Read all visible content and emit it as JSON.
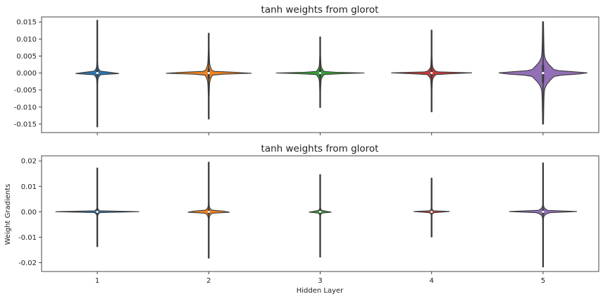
{
  "chart_data": [
    {
      "type": "violin",
      "title": "tanh weights from glorot",
      "xlabel": "",
      "ylabel": "",
      "categories": [
        "1",
        "2",
        "3",
        "4",
        "5"
      ],
      "ylim": [
        -0.0175,
        0.0165
      ],
      "yticks": [
        0.015,
        0.01,
        0.005,
        0.0,
        -0.005,
        -0.01,
        -0.015
      ],
      "yticklabels": [
        "0.015",
        "0.010",
        "0.005",
        "0.000",
        "-0.005",
        "-0.010",
        "-0.015"
      ],
      "show_xticklabels": false,
      "violins": [
        {
          "category": "1",
          "color": "#2e75ad",
          "min": -0.0158,
          "max": 0.0155,
          "q1": -0.0008,
          "median": 0.0,
          "q3": 0.0009,
          "iqr_width": 0.075,
          "tail_width": 0.025
        },
        {
          "category": "2",
          "color": "#ee8421",
          "min": -0.0135,
          "max": 0.0117,
          "q1": -0.0016,
          "median": 0.0,
          "q3": 0.0013,
          "iqr_width": 0.06,
          "tail_width": 0.03
        },
        {
          "category": "3",
          "color": "#389d39",
          "min": -0.0101,
          "max": 0.0106,
          "q1": -0.0012,
          "median": 0.0,
          "q3": 0.0012,
          "iqr_width": 0.065,
          "tail_width": 0.03
        },
        {
          "category": "4",
          "color": "#c63b3b",
          "min": -0.0114,
          "max": 0.0126,
          "q1": -0.001,
          "median": 0.0,
          "q3": 0.0011,
          "iqr_width": 0.08,
          "tail_width": 0.03
        },
        {
          "category": "5",
          "color": "#926fb6",
          "min": -0.015,
          "max": 0.0151,
          "q1": -0.0028,
          "median": 0.0,
          "q3": 0.0024,
          "iqr_width": 0.23,
          "tail_width": 0.04
        }
      ]
    },
    {
      "type": "violin",
      "title": "tanh weights from glorot",
      "xlabel": "Hidden Layer",
      "ylabel": "Weight Gradients",
      "categories": [
        "1",
        "2",
        "3",
        "4",
        "5"
      ],
      "ylim": [
        -0.0235,
        0.022
      ],
      "yticks": [
        0.02,
        0.01,
        0.0,
        -0.01,
        -0.02
      ],
      "yticklabels": [
        "0.02",
        "0.01",
        "0.00",
        "-0.01",
        "-0.02"
      ],
      "show_xticklabels": true,
      "violins": [
        {
          "category": "1",
          "color": "#2e75ad",
          "min": -0.0137,
          "max": 0.0172,
          "q1": -0.0006,
          "median": 0.0,
          "q3": 0.0007,
          "iqr_width": 0.055,
          "tail_width": 0.018
        },
        {
          "category": "2",
          "color": "#ee8421",
          "min": -0.0182,
          "max": 0.0195,
          "q1": -0.0009,
          "median": 0.0,
          "q3": 0.0011,
          "iqr_width": 0.075,
          "tail_width": 0.02
        },
        {
          "category": "3",
          "color": "#389d39",
          "min": -0.0178,
          "max": 0.0146,
          "q1": -0.0006,
          "median": 0.0,
          "q3": 0.0007,
          "iqr_width": 0.045,
          "tail_width": 0.016
        },
        {
          "category": "4",
          "color": "#c63b3b",
          "min": -0.0099,
          "max": 0.0132,
          "q1": -0.0005,
          "median": 0.0,
          "q3": 0.0006,
          "iqr_width": 0.05,
          "tail_width": 0.016
        },
        {
          "category": "5",
          "color": "#926fb6",
          "min": -0.0217,
          "max": 0.0192,
          "q1": -0.001,
          "median": 0.0,
          "q3": 0.0011,
          "iqr_width": 0.11,
          "tail_width": 0.02
        }
      ]
    }
  ]
}
